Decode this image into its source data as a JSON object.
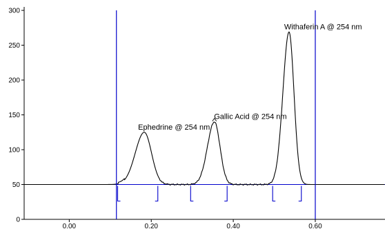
{
  "chart_data": {
    "type": "line",
    "xlim": [
      -0.11,
      0.77
    ],
    "ylim": [
      0,
      305
    ],
    "x_ticks": [
      {
        "value": 0.0,
        "label": "0.00"
      },
      {
        "value": 0.2,
        "label": "0.20"
      },
      {
        "value": 0.4,
        "label": "0.40"
      },
      {
        "value": 0.6,
        "label": "0.60"
      }
    ],
    "y_ticks": [
      {
        "value": 0,
        "label": "0"
      },
      {
        "value": 50,
        "label": "50"
      },
      {
        "value": 100,
        "label": "100"
      },
      {
        "value": 150,
        "label": "150"
      },
      {
        "value": 200,
        "label": "200"
      },
      {
        "value": 250,
        "label": "250"
      },
      {
        "value": 300,
        "label": "300"
      }
    ],
    "grid": false,
    "baseline_y": 50,
    "vertical_markers_x": [
      0.115,
      0.6
    ],
    "trace_color": "#000000",
    "marker_color": "#0000cc",
    "peaks": [
      {
        "label": "Ephedrine @ 254 nm",
        "x": 0.183,
        "height": 125
      },
      {
        "label": "Gallic Acid @ 254 nm",
        "x": 0.354,
        "height": 140
      },
      {
        "label": "Withaferin A @ 254 nm",
        "x": 0.536,
        "height": 269
      }
    ],
    "integration_ticks_x": [
      0.118,
      0.216,
      0.296,
      0.385,
      0.496,
      0.566
    ]
  }
}
